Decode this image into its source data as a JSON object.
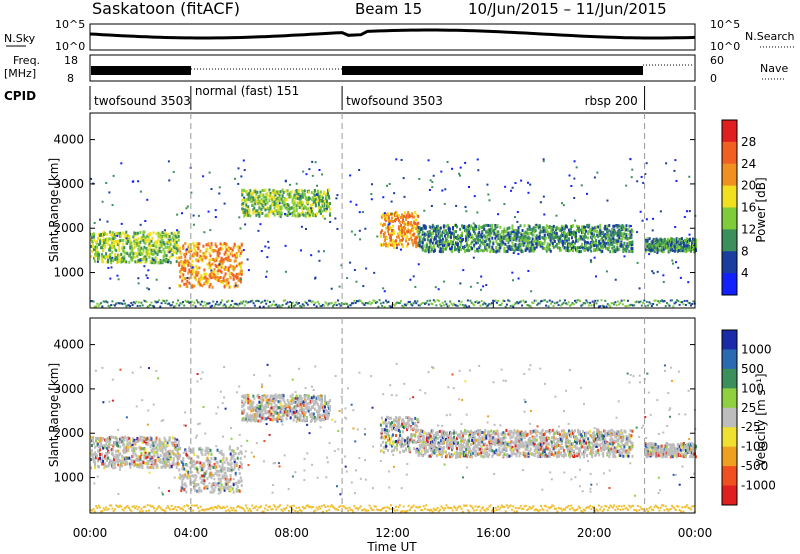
{
  "header": {
    "station": "Saskatoon (fitACF)",
    "beam": "Beam 15",
    "date_range": "10/Jun/2015 – 11/Jun/2015"
  },
  "panels": {
    "nsky": {
      "left_label": "N.Sky",
      "left_ticks": [
        "10^5",
        "10^0"
      ],
      "right_ticks": [
        "10^5",
        "10^0"
      ],
      "right_label": "N.Search"
    },
    "freq": {
      "left_label": "Freq.",
      "left_unit": "[MHz]",
      "left_ticks": [
        "18",
        "8"
      ],
      "right_ticks": [
        "60",
        "0"
      ],
      "right_label": "Nave"
    },
    "cpid": {
      "label": "CPID",
      "segments": [
        {
          "name": "twofsound 3503",
          "start_h": 0,
          "end_h": 4
        },
        {
          "name": "normal (fast) 151",
          "start_h": 4,
          "end_h": 10
        },
        {
          "name": "twofsound 3503",
          "start_h": 10,
          "end_h": 22
        },
        {
          "name": "rbsp 200",
          "start_h": 22,
          "end_h": 24
        }
      ]
    }
  },
  "chart_data": [
    {
      "type": "heatmap",
      "name": "Power",
      "ylabel": "Slant Range [km]",
      "ylim": [
        200,
        4600
      ],
      "yticks": [
        1000,
        2000,
        3000,
        4000
      ],
      "xlim": [
        0,
        24
      ],
      "colorbar": {
        "label": "Power [dB]",
        "ticks": [
          "4",
          "8",
          "12",
          "16",
          "20",
          "24",
          "28"
        ],
        "colors": [
          "#1020ff",
          "#1a3ea0",
          "#3a8f5a",
          "#7fcc3a",
          "#f0e020",
          "#f09020",
          "#f06020",
          "#e02020"
        ]
      },
      "bands": [
        {
          "t_start": 0.0,
          "t_end": 3.5,
          "r_center": 1600,
          "r_width": 350,
          "level": "medium"
        },
        {
          "t_start": 3.5,
          "t_end": 6.0,
          "r_center": 1200,
          "r_width": 500,
          "level": "high"
        },
        {
          "t_start": 6.0,
          "t_end": 9.5,
          "r_center": 2600,
          "r_width": 300,
          "level": "medium"
        },
        {
          "t_start": 11.5,
          "t_end": 13.0,
          "r_center": 2000,
          "r_width": 400,
          "level": "high"
        },
        {
          "t_start": 13.0,
          "t_end": 21.5,
          "r_center": 1800,
          "r_width": 300,
          "level": "low"
        },
        {
          "t_start": 22.0,
          "t_end": 24.0,
          "r_center": 1650,
          "r_width": 150,
          "level": "low"
        }
      ]
    },
    {
      "type": "heatmap",
      "name": "Velocity",
      "ylabel": "Slant Range [km]",
      "xlabel": "Time UT",
      "ylim": [
        200,
        4600
      ],
      "yticks": [
        1000,
        2000,
        3000,
        4000
      ],
      "xlim": [
        0,
        24
      ],
      "xticks": [
        "00:00",
        "04:00",
        "08:00",
        "12:00",
        "16:00",
        "20:00",
        "00:00"
      ],
      "colorbar": {
        "label": "Velocity [m s⁻¹]",
        "ticks": [
          "1000",
          "500",
          "100",
          "25",
          "-25",
          "-100",
          "-500",
          "-1000"
        ],
        "colors": [
          "#1a2aa8",
          "#2a6ab0",
          "#3a8f5a",
          "#8fd040",
          "#bdbdbd",
          "#f0e030",
          "#f0a020",
          "#f05020",
          "#e02020"
        ]
      }
    }
  ],
  "markers_h": [
    4,
    10,
    22
  ],
  "legend_dots": {
    "nsearch": "N.Search",
    "nave": "Nave"
  }
}
